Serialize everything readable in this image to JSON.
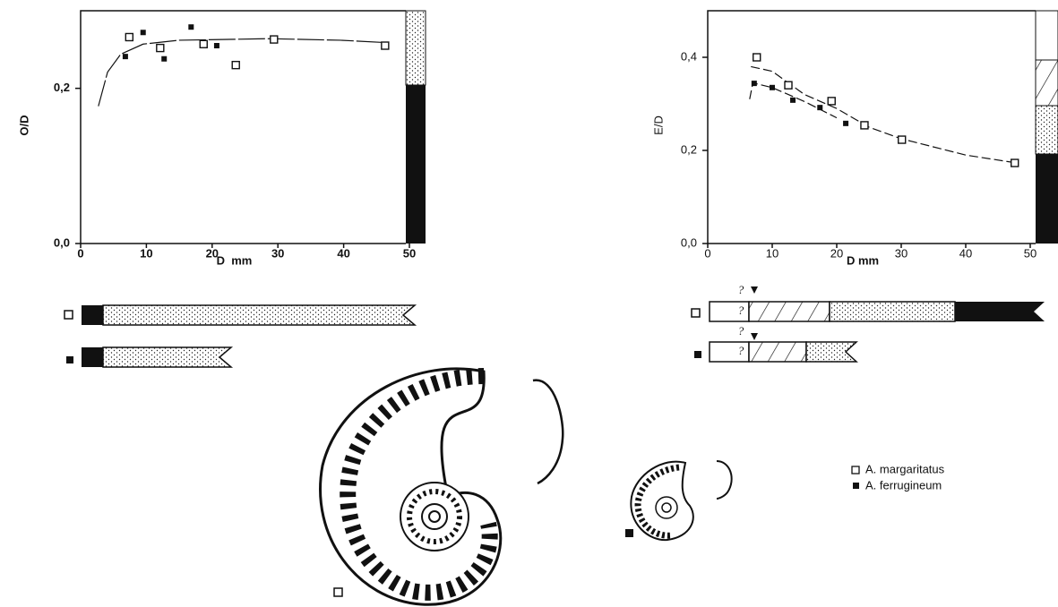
{
  "chart_data": [
    {
      "type": "scatter",
      "ylabel": "O/D",
      "xlabel": "D  mm",
      "xlim": [
        0,
        50
      ],
      "ylim": [
        0,
        0.3
      ],
      "xticks": [
        0,
        10,
        20,
        30,
        40,
        50
      ],
      "yticks": [
        {
          "value": 0,
          "label": "0,0"
        },
        {
          "value": 0.2,
          "label": "0,2"
        }
      ],
      "series": [
        {
          "name": "A. margaritatus",
          "marker": "open",
          "x": [
            7.4,
            12.1,
            18.7,
            23.6,
            29.4,
            46.3
          ],
          "values": [
            0.266,
            0.252,
            0.257,
            0.23,
            0.263,
            0.255
          ]
        },
        {
          "name": "A. ferrugineum",
          "marker": "filled",
          "x": [
            6.8,
            9.5,
            12.7,
            16.8,
            20.7
          ],
          "values": [
            0.241,
            0.272,
            0.238,
            0.279,
            0.255
          ]
        }
      ],
      "curves": [
        {
          "x": [
            2.7,
            4.1,
            6.1,
            9.5,
            15,
            28.6,
            39.5,
            46.3
          ],
          "values": [
            0.177,
            0.221,
            0.244,
            0.257,
            0.262,
            0.264,
            0.262,
            0.259
          ]
        }
      ]
    },
    {
      "type": "scatter",
      "ylabel": "E/D",
      "xlabel": "D mm",
      "xlim": [
        0,
        50
      ],
      "ylim": [
        0,
        0.5
      ],
      "xticks": [
        0,
        10,
        20,
        30,
        40,
        50
      ],
      "yticks": [
        {
          "value": 0,
          "label": "0,0"
        },
        {
          "value": 0.2,
          "label": "0,2"
        },
        {
          "value": 0.4,
          "label": "0,4"
        }
      ],
      "series": [
        {
          "marker": "open",
          "x": [
            7.6,
            12.5,
            19.2,
            24.3,
            30.1,
            47.6
          ],
          "values": [
            0.4,
            0.34,
            0.306,
            0.254,
            0.223,
            0.173
          ]
        },
        {
          "marker": "filled",
          "x": [
            7.2,
            10,
            13.2,
            17.4,
            21.4
          ],
          "values": [
            0.344,
            0.335,
            0.308,
            0.292,
            0.258
          ]
        }
      ],
      "curves": [
        {
          "x": [
            6.7,
            10,
            15,
            20,
            25,
            30,
            40,
            47
          ],
          "values": [
            0.38,
            0.37,
            0.32,
            0.29,
            0.25,
            0.225,
            0.19,
            0.175
          ]
        },
        {
          "x": [
            6.5,
            7,
            10,
            15,
            20
          ],
          "values": [
            0.31,
            0.345,
            0.335,
            0.305,
            0.27
          ]
        }
      ],
      "annotations": [
        "?",
        "?",
        "?",
        "?"
      ]
    }
  ]
}
